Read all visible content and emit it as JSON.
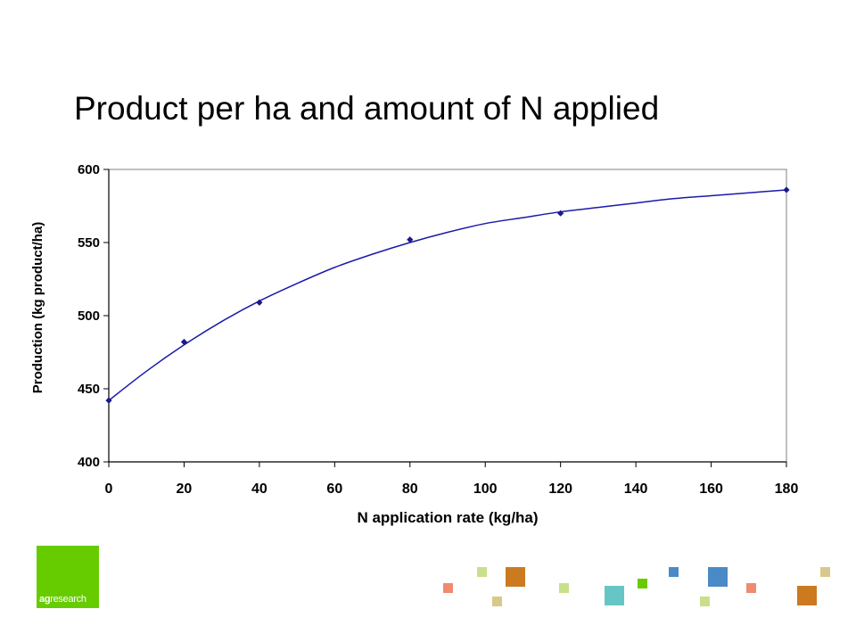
{
  "slide": {
    "title": "Product per ha and amount of N applied"
  },
  "logo": {
    "bold_part": "ag",
    "rest_part": "research",
    "color": "#66cc00"
  },
  "decor_colors": {
    "orange": "#cc7a1f",
    "light_green": "#c8e08a",
    "salmon": "#f08a70",
    "teal": "#66c6c6",
    "green": "#66cc00",
    "blue": "#4a8ac6",
    "khaki": "#d9c88a"
  },
  "chart_data": {
    "type": "scatter",
    "title": "",
    "xlabel": "N application rate (kg/ha)",
    "ylabel": "Production (kg product/ha)",
    "xlim": [
      0,
      180
    ],
    "ylim": [
      400,
      600
    ],
    "x_ticks": [
      0,
      20,
      40,
      60,
      80,
      100,
      120,
      140,
      160,
      180
    ],
    "y_ticks": [
      400,
      450,
      500,
      550,
      600
    ],
    "grid": false,
    "legend": "none",
    "marker_color": "#1a1a8c",
    "line_color": "#1a1aaa",
    "points": {
      "x": [
        0,
        20,
        40,
        80,
        120,
        180
      ],
      "y": [
        442,
        482,
        509,
        552,
        570,
        586
      ]
    },
    "trendline": {
      "type": "smooth-fit",
      "x": [
        0,
        10,
        20,
        30,
        40,
        50,
        60,
        70,
        80,
        90,
        100,
        110,
        120,
        130,
        140,
        150,
        160,
        170,
        180
      ],
      "y": [
        442,
        462,
        480,
        496,
        510,
        522,
        533,
        542,
        550,
        557,
        563,
        567,
        571,
        574,
        577,
        580,
        582,
        584,
        586
      ]
    }
  }
}
